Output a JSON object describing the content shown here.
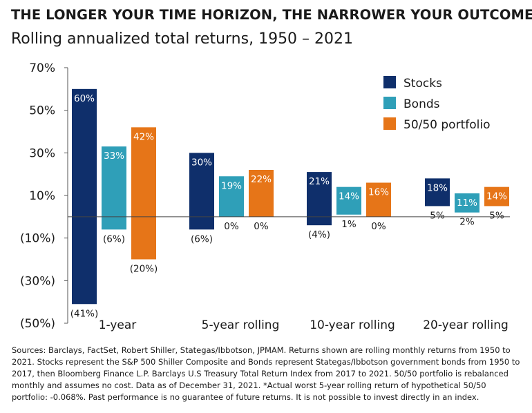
{
  "header": {
    "title": "THE LONGER YOUR TIME HORIZON, THE NARROWER YOUR OUTCOME",
    "subtitle": "Rolling annualized total returns, 1950 – 2021"
  },
  "footnote": "Sources: Barclays, FactSet, Robert Shiller, Stategas/Ibbotson, JPMAM. Returns shown are rolling monthly returns from 1950 to 2021. Stocks represent the S&P 500 Shiller Composite and Bonds represent Stategas/Ibbotson government bonds from 1950 to 2017, then Bloomberg Finance L.P. Barclays U.S Treasury Total Return Index from 2017 to 2021. 50/50 portfolio is rebalanced monthly and assumes no cost. Data as of December 31, 2021. *Actual worst 5-year rolling return of hypothetical 50/50 portfolio: -0.068%. Past performance is no guarantee of future returns. It is not possible to invest directly in an index.",
  "chart_data": {
    "type": "floating-bar",
    "title": "THE LONGER YOUR TIME HORIZON, THE NARROWER YOUR OUTCOME",
    "subtitle": "Rolling annualized total returns, 1950 – 2021",
    "ylim": [
      -50,
      70
    ],
    "yticks": [
      70,
      50,
      30,
      10,
      -10,
      -30,
      -50
    ],
    "ytick_labels": [
      "70%",
      "50%",
      "30%",
      "10%",
      "(10%)",
      "(30%)",
      "(50%)"
    ],
    "categories": [
      "1-year",
      "5-year rolling",
      "10-year rolling",
      "20-year rolling"
    ],
    "series": [
      {
        "name": "Stocks",
        "color": "#0f2f6b",
        "high": [
          60,
          30,
          21,
          18
        ],
        "low": [
          -41,
          -6,
          -4,
          5
        ],
        "high_labels": [
          "60%",
          "30%",
          "21%",
          "18%"
        ],
        "low_labels": [
          "(41%)",
          "(6%)",
          "(4%)",
          "5%"
        ]
      },
      {
        "name": "Bonds",
        "color": "#2f9fb8",
        "high": [
          33,
          19,
          14,
          11
        ],
        "low": [
          -6,
          0,
          1,
          2
        ],
        "high_labels": [
          "33%",
          "19%",
          "14%",
          "11%"
        ],
        "low_labels": [
          "(6%)",
          "0%",
          "1%",
          "2%"
        ]
      },
      {
        "name": "50/50 portfolio",
        "color": "#e67518",
        "high": [
          42,
          22,
          16,
          14
        ],
        "low": [
          -20,
          0,
          0,
          5
        ],
        "high_labels": [
          "42%",
          "22%",
          "16%",
          "14%"
        ],
        "low_labels": [
          "(20%)",
          "0%",
          "0%",
          "5%"
        ]
      }
    ],
    "legend": "top-right"
  }
}
